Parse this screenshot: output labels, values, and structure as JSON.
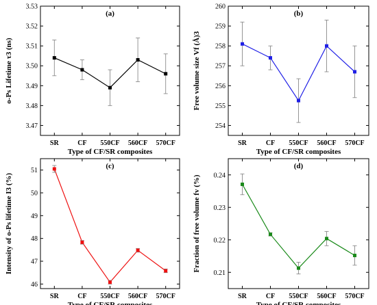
{
  "chart_data": [
    {
      "type": "line",
      "panel_label": "(a)",
      "xlabel": "Type of CF/SR composites",
      "ylabel": "o-Ps Lifetime τ3 (ns)",
      "categories": [
        "SR",
        "CF",
        "550CF",
        "560CF",
        "570CF"
      ],
      "series": [
        {
          "values": [
            3.504,
            3.498,
            3.489,
            3.503,
            3.496
          ],
          "errors": [
            0.009,
            0.005,
            0.009,
            0.011,
            0.01
          ]
        }
      ],
      "ylim": [
        3.465,
        3.53
      ],
      "yticks": [
        3.47,
        3.48,
        3.49,
        3.5,
        3.51,
        3.52,
        3.53
      ],
      "ytick_labels": [
        "3.47",
        "3.48",
        "3.49",
        "3.50",
        "3.51",
        "3.52",
        "3.53"
      ],
      "color": "#000000"
    },
    {
      "type": "line",
      "panel_label": "(b)",
      "xlabel": "Type of CF/SR composites",
      "ylabel": "Free volume size Vf (Å)3",
      "categories": [
        "SR",
        "CF",
        "550CF",
        "560CF",
        "570CF"
      ],
      "series": [
        {
          "values": [
            258.1,
            257.4,
            255.25,
            258.0,
            256.7
          ],
          "errors": [
            1.1,
            0.6,
            1.1,
            1.3,
            1.3
          ]
        }
      ],
      "ylim": [
        253.5,
        260
      ],
      "yticks": [
        254,
        255,
        256,
        257,
        258,
        259,
        260
      ],
      "ytick_labels": [
        "254",
        "255",
        "256",
        "257",
        "258",
        "259",
        "260"
      ],
      "color": "#1f1fe6"
    },
    {
      "type": "line",
      "panel_label": "(c)",
      "xlabel": "Type of CF/SR composites",
      "ylabel": "Intensity of o-Ps lifetime I3 (%)",
      "categories": [
        "SR",
        "CF",
        "550CF",
        "560CF",
        "570CF"
      ],
      "series": [
        {
          "values": [
            51.05,
            47.83,
            46.08,
            47.48,
            46.58
          ],
          "errors": [
            0.15,
            0.08,
            0.08,
            0.08,
            0.08
          ]
        }
      ],
      "ylim": [
        45.8,
        51.5
      ],
      "yticks": [
        46,
        47,
        48,
        49,
        50,
        51
      ],
      "ytick_labels": [
        "46",
        "47",
        "48",
        "49",
        "50",
        "51"
      ],
      "color": "#ee1111"
    },
    {
      "type": "line",
      "panel_label": "(d)",
      "xlabel": "Type of CF/SR composites",
      "ylabel": "Fraction of free volume fv (%)",
      "categories": [
        "SR",
        "CF",
        "550CF",
        "560CF",
        "570CF"
      ],
      "series": [
        {
          "values": [
            0.2371,
            0.2217,
            0.2113,
            0.2204,
            0.2152
          ],
          "errors": [
            0.0032,
            0.0005,
            0.0018,
            0.0022,
            0.003
          ]
        }
      ],
      "ylim": [
        0.205,
        0.245
      ],
      "yticks": [
        0.21,
        0.22,
        0.23,
        0.24
      ],
      "ytick_labels": [
        "0.21",
        "0.22",
        "0.23",
        "0.24"
      ],
      "color": "#1a8a1a"
    }
  ]
}
